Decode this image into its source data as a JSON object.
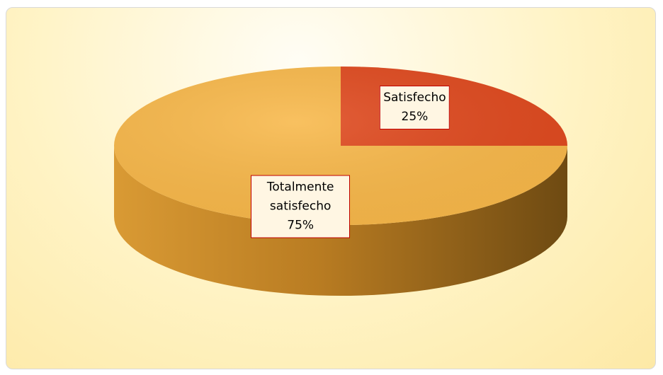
{
  "chart_data": {
    "type": "pie",
    "categories": [
      "Satisfecho",
      "Totalmente satisfecho"
    ],
    "values": [
      25,
      75
    ],
    "value_labels": [
      "25%",
      "75%"
    ],
    "colors": [
      "#e04a1f",
      "#f8b84a"
    ]
  }
}
